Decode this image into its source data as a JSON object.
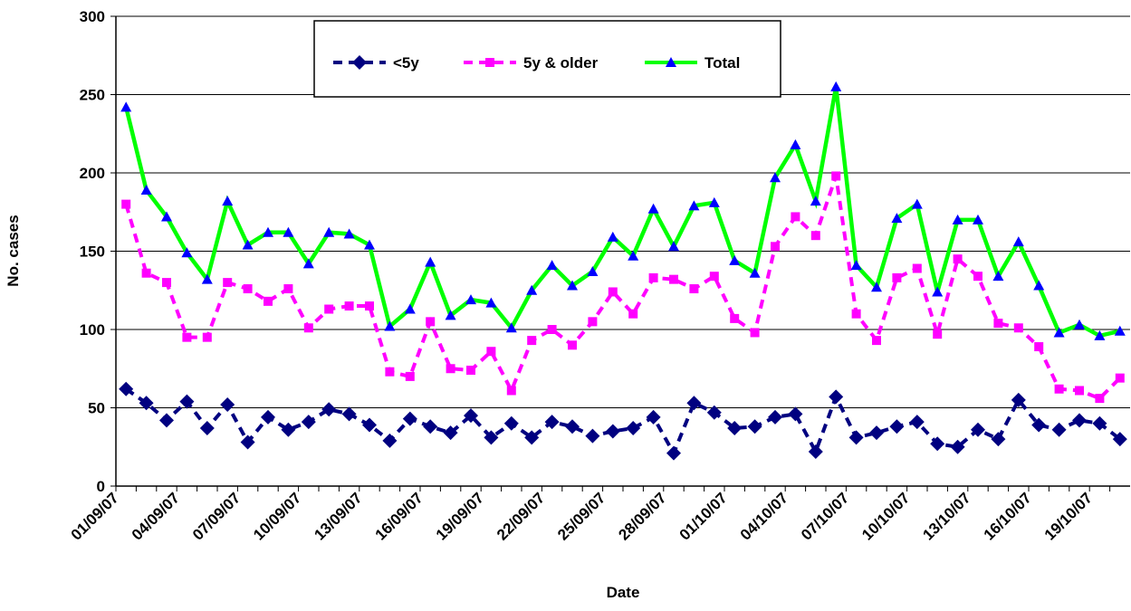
{
  "chart_data": {
    "type": "line",
    "y_label": "No. cases",
    "x_label": "Date",
    "categories": [
      "01/09/07",
      null,
      null,
      "04/09/07",
      null,
      null,
      "07/09/07",
      null,
      null,
      "10/09/07",
      null,
      null,
      "13/09/07",
      null,
      null,
      "16/09/07",
      null,
      null,
      "19/09/07",
      null,
      null,
      "22/09/07",
      null,
      null,
      "25/09/07",
      null,
      null,
      "28/09/07",
      null,
      null,
      "01/10/07",
      null,
      null,
      "04/10/07",
      null,
      null,
      "07/10/07",
      null,
      null,
      "10/10/07",
      null,
      null,
      "13/10/07",
      null,
      null,
      "16/10/07",
      null,
      null,
      "19/10/07",
      null
    ],
    "series": [
      {
        "name": "<5y",
        "color": "#000080",
        "marker_color": "#000080",
        "marker": "diamond",
        "dashed": true,
        "values": [
          62,
          53,
          42,
          54,
          37,
          52,
          28,
          44,
          36,
          41,
          49,
          46,
          39,
          29,
          43,
          38,
          34,
          45,
          31,
          40,
          31,
          41,
          38,
          32,
          35,
          37,
          44,
          21,
          53,
          47,
          37,
          38,
          44,
          46,
          22,
          57,
          31,
          34,
          38,
          41,
          27,
          25,
          36,
          30,
          55,
          39,
          36,
          42,
          40,
          30
        ]
      },
      {
        "name": "5y & older",
        "color": "#ff00ff",
        "marker_color": "#ff00ff",
        "marker": "square",
        "dashed": true,
        "values": [
          180,
          136,
          130,
          95,
          95,
          130,
          126,
          118,
          126,
          101,
          113,
          115,
          115,
          73,
          70,
          105,
          75,
          74,
          86,
          61,
          93,
          100,
          90,
          105,
          124,
          110,
          133,
          132,
          126,
          134,
          107,
          98,
          153,
          172,
          160,
          198,
          110,
          93,
          133,
          139,
          97,
          145,
          134,
          104,
          101,
          89,
          62,
          61,
          56,
          69
        ]
      },
      {
        "name": "Total",
        "color": "#00ff00",
        "marker_color": "#0000ff",
        "marker": "triangle",
        "dashed": false,
        "values": [
          242,
          189,
          172,
          149,
          132,
          182,
          154,
          162,
          162,
          142,
          162,
          161,
          154,
          102,
          113,
          143,
          109,
          119,
          117,
          101,
          125,
          141,
          128,
          137,
          159,
          147,
          177,
          153,
          179,
          181,
          144,
          136,
          197,
          218,
          182,
          255,
          141,
          127,
          171,
          180,
          124,
          170,
          170,
          134,
          156,
          128,
          98,
          103,
          96,
          99
        ]
      }
    ],
    "ylim": [
      0,
      300
    ],
    "yticks": [
      0,
      50,
      100,
      150,
      200,
      250,
      300
    ],
    "grid": true,
    "legend": "top"
  }
}
